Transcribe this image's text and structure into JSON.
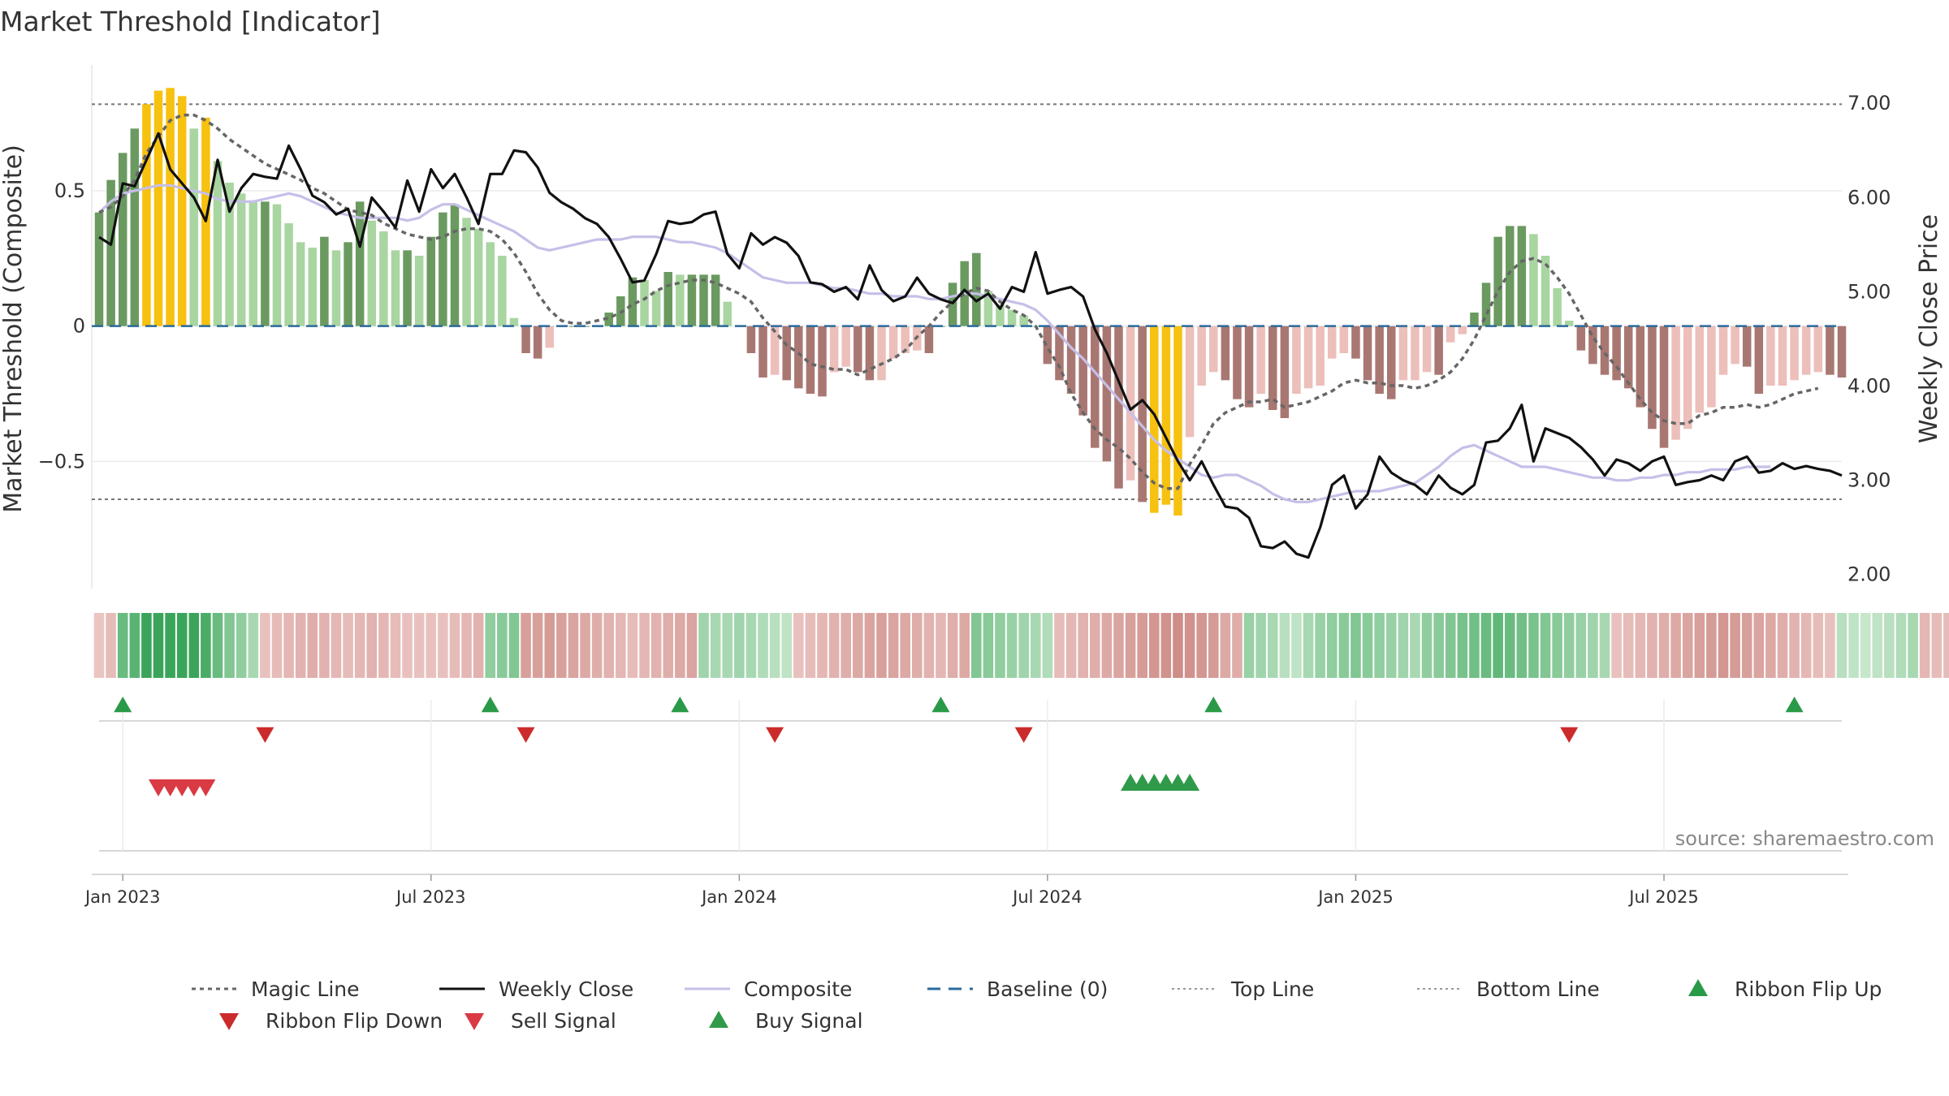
{
  "chart_data": {
    "type": "bar",
    "title": "Market Threshold [Indicator]",
    "ylabel": "Market Threshold (Composite)",
    "y2label": "Weekly Close Price",
    "source": "source: sharemaestro.com",
    "ylim": [
      -0.97,
      0.98
    ],
    "y2lim": [
      1.85,
      7.45
    ],
    "yticks": [
      {
        "v": 0.5,
        "label": "0.5"
      },
      {
        "v": 0,
        "label": "0"
      },
      {
        "v": -0.5,
        "label": "−0.5"
      }
    ],
    "y2ticks": [
      {
        "v": 7,
        "label": "7.00"
      },
      {
        "v": 6,
        "label": "6.00"
      },
      {
        "v": 5,
        "label": "5.00"
      },
      {
        "v": 4,
        "label": "4.00"
      },
      {
        "v": 3,
        "label": "3.00"
      },
      {
        "v": 2,
        "label": "2.00"
      }
    ],
    "xticks": [
      {
        "i": 2,
        "label": "Jan 2023"
      },
      {
        "i": 28,
        "label": "Jul 2023"
      },
      {
        "i": 54,
        "label": "Jan 2024"
      },
      {
        "i": 80,
        "label": "Jul 2024"
      },
      {
        "i": 106,
        "label": "Jan 2025"
      },
      {
        "i": 132,
        "label": "Jul 2025"
      }
    ],
    "top_line": 0.82,
    "bottom_line": -0.64,
    "baseline": 0,
    "composite_bars": [
      0.42,
      0.54,
      0.64,
      0.73,
      0.82,
      0.87,
      0.88,
      0.85,
      0.73,
      0.77,
      0.61,
      0.53,
      0.49,
      0.46,
      0.46,
      0.45,
      0.38,
      0.31,
      0.29,
      0.33,
      0.28,
      0.31,
      0.46,
      0.39,
      0.35,
      0.28,
      0.28,
      0.26,
      0.33,
      0.42,
      0.45,
      0.4,
      0.36,
      0.31,
      0.26,
      0.03,
      -0.1,
      -0.12,
      -0.08,
      0.0,
      0.0,
      0.0,
      0.0,
      0.05,
      0.11,
      0.18,
      0.17,
      0.13,
      0.2,
      0.19,
      0.19,
      0.19,
      0.19,
      0.09,
      0.0,
      -0.1,
      -0.19,
      -0.18,
      -0.2,
      -0.23,
      -0.25,
      -0.26,
      -0.17,
      -0.15,
      -0.17,
      -0.2,
      -0.2,
      -0.12,
      -0.1,
      -0.09,
      -0.1,
      0.0,
      0.16,
      0.24,
      0.27,
      0.13,
      0.08,
      0.06,
      0.04,
      0.0,
      -0.14,
      -0.2,
      -0.25,
      -0.33,
      -0.45,
      -0.5,
      -0.6,
      -0.57,
      -0.65,
      -0.69,
      -0.66,
      -0.7,
      -0.41,
      -0.22,
      -0.17,
      -0.2,
      -0.27,
      -0.3,
      -0.25,
      -0.31,
      -0.34,
      -0.25,
      -0.23,
      -0.22,
      -0.12,
      -0.1,
      -0.12,
      -0.2,
      -0.25,
      -0.27,
      -0.2,
      -0.2,
      -0.17,
      -0.18,
      -0.06,
      -0.03,
      0.05,
      0.16,
      0.33,
      0.37,
      0.37,
      0.34,
      0.26,
      0.14,
      0.02,
      -0.09,
      -0.14,
      -0.18,
      -0.2,
      -0.23,
      -0.3,
      -0.38,
      -0.45,
      -0.42,
      -0.38,
      -0.32,
      -0.3,
      -0.18,
      -0.14,
      -0.15,
      -0.25,
      -0.22,
      -0.22,
      -0.2,
      -0.18,
      -0.17,
      -0.18,
      -0.19
    ],
    "series": [
      {
        "name": "Magic Line",
        "axis": "left",
        "values": [
          0.42,
          0.44,
          0.48,
          0.54,
          0.64,
          0.7,
          0.76,
          0.78,
          0.78,
          0.76,
          0.73,
          0.69,
          0.66,
          0.63,
          0.6,
          0.58,
          0.56,
          0.54,
          0.51,
          0.49,
          0.46,
          0.43,
          0.42,
          0.41,
          0.38,
          0.36,
          0.34,
          0.33,
          0.32,
          0.33,
          0.35,
          0.36,
          0.36,
          0.35,
          0.32,
          0.27,
          0.2,
          0.12,
          0.06,
          0.02,
          0.01,
          0.01,
          0.02,
          0.03,
          0.05,
          0.08,
          0.1,
          0.13,
          0.15,
          0.16,
          0.17,
          0.17,
          0.16,
          0.14,
          0.12,
          0.09,
          0.03,
          -0.02,
          -0.07,
          -0.1,
          -0.14,
          -0.15,
          -0.16,
          -0.16,
          -0.18,
          -0.16,
          -0.14,
          -0.12,
          -0.09,
          -0.04,
          0.0,
          0.05,
          0.09,
          0.12,
          0.14,
          0.13,
          0.09,
          0.06,
          0.04,
          0.0,
          -0.08,
          -0.15,
          -0.25,
          -0.32,
          -0.38,
          -0.42,
          -0.45,
          -0.49,
          -0.54,
          -0.58,
          -0.6,
          -0.6,
          -0.51,
          -0.44,
          -0.36,
          -0.32,
          -0.3,
          -0.28,
          -0.28,
          -0.27,
          -0.3,
          -0.29,
          -0.28,
          -0.26,
          -0.24,
          -0.21,
          -0.2,
          -0.21,
          -0.21,
          -0.22,
          -0.22,
          -0.23,
          -0.22,
          -0.2,
          -0.17,
          -0.12,
          -0.05,
          0.04,
          0.13,
          0.2,
          0.24,
          0.25,
          0.23,
          0.18,
          0.12,
          0.04,
          -0.04,
          -0.1,
          -0.15,
          -0.21,
          -0.27,
          -0.32,
          -0.35,
          -0.36,
          -0.36,
          -0.33,
          -0.32,
          -0.3,
          -0.3,
          -0.29,
          -0.3,
          -0.29,
          -0.27,
          -0.25,
          -0.24,
          -0.23
        ]
      },
      {
        "name": "Weekly Close",
        "axis": "right",
        "values": [
          5.58,
          5.5,
          6.15,
          6.12,
          6.4,
          6.68,
          6.3,
          6.15,
          6.0,
          5.75,
          6.4,
          5.85,
          6.1,
          6.25,
          6.22,
          6.2,
          6.55,
          6.3,
          6.02,
          5.95,
          5.82,
          5.88,
          5.48,
          6.0,
          5.85,
          5.68,
          6.18,
          5.85,
          6.3,
          6.1,
          6.25,
          6.0,
          5.72,
          6.25,
          6.25,
          6.5,
          6.48,
          6.32,
          6.05,
          5.95,
          5.88,
          5.78,
          5.72,
          5.58,
          5.35,
          5.1,
          5.12,
          5.4,
          5.75,
          5.72,
          5.74,
          5.82,
          5.85,
          5.4,
          5.25,
          5.62,
          5.5,
          5.58,
          5.52,
          5.38,
          5.1,
          5.08,
          5.0,
          5.05,
          4.92,
          5.28,
          5.02,
          4.9,
          4.95,
          5.15,
          4.98,
          4.92,
          4.88,
          5.02,
          4.9,
          4.98,
          4.82,
          5.05,
          5.0,
          5.42,
          4.98,
          5.02,
          5.05,
          4.95,
          4.6,
          4.35,
          4.05,
          3.75,
          3.85,
          3.7,
          3.45,
          3.2,
          3.0,
          3.2,
          2.95,
          2.72,
          2.7,
          2.6,
          2.3,
          2.28,
          2.35,
          2.22,
          2.18,
          2.5,
          2.95,
          3.05,
          2.7,
          2.85,
          3.25,
          3.08,
          3.0,
          2.95,
          2.85,
          3.05,
          2.92,
          2.85,
          2.95,
          3.4,
          3.42,
          3.55,
          3.8,
          3.2,
          3.55,
          3.5,
          3.45,
          3.35,
          3.22,
          3.05,
          3.22,
          3.18,
          3.1,
          3.2,
          3.25,
          2.95,
          2.98,
          3.0,
          3.05,
          3.0,
          3.2,
          3.25,
          3.08,
          3.1,
          3.18,
          3.12,
          3.15,
          3.12,
          3.1,
          3.05
        ]
      },
      {
        "name": "Composite",
        "axis": "left",
        "values": [
          0.42,
          0.46,
          0.49,
          0.5,
          0.51,
          0.52,
          0.52,
          0.51,
          0.5,
          0.49,
          0.47,
          0.46,
          0.46,
          0.46,
          0.47,
          0.48,
          0.49,
          0.48,
          0.46,
          0.44,
          0.42,
          0.41,
          0.4,
          0.4,
          0.4,
          0.4,
          0.39,
          0.4,
          0.43,
          0.45,
          0.45,
          0.43,
          0.41,
          0.39,
          0.37,
          0.35,
          0.32,
          0.29,
          0.28,
          0.29,
          0.3,
          0.31,
          0.32,
          0.32,
          0.32,
          0.33,
          0.33,
          0.33,
          0.32,
          0.31,
          0.31,
          0.3,
          0.29,
          0.27,
          0.24,
          0.21,
          0.18,
          0.17,
          0.16,
          0.16,
          0.16,
          0.15,
          0.14,
          0.14,
          0.13,
          0.12,
          0.12,
          0.11,
          0.11,
          0.11,
          0.1,
          0.1,
          0.11,
          0.12,
          0.12,
          0.11,
          0.1,
          0.09,
          0.08,
          0.06,
          0.02,
          -0.03,
          -0.08,
          -0.12,
          -0.17,
          -0.22,
          -0.27,
          -0.32,
          -0.37,
          -0.42,
          -0.46,
          -0.49,
          -0.52,
          -0.55,
          -0.56,
          -0.55,
          -0.55,
          -0.57,
          -0.59,
          -0.62,
          -0.64,
          -0.65,
          -0.65,
          -0.64,
          -0.63,
          -0.62,
          -0.61,
          -0.61,
          -0.61,
          -0.6,
          -0.59,
          -0.58,
          -0.55,
          -0.52,
          -0.48,
          -0.45,
          -0.44,
          -0.46,
          -0.48,
          -0.5,
          -0.52,
          -0.52,
          -0.52,
          -0.53,
          -0.54,
          -0.55,
          -0.56,
          -0.56,
          -0.57,
          -0.57,
          -0.56,
          -0.56,
          -0.55,
          -0.55,
          -0.54,
          -0.54,
          -0.53,
          -0.53,
          -0.53,
          -0.52,
          -0.52,
          -0.52
        ]
      }
    ],
    "ribbon": [
      0.2,
      0.3,
      0.7,
      0.8,
      1,
      1,
      1,
      1,
      1,
      0.9,
      0.7,
      0.55,
      0.45,
      0.3,
      0.25,
      0.3,
      0.35,
      0.4,
      0.45,
      0.4,
      0.35,
      0.3,
      0.35,
      0.4,
      0.35,
      0.3,
      0.25,
      0.25,
      0.25,
      0.25,
      0.3,
      0.35,
      0.4,
      0.45,
      0.5,
      0.55,
      0.6,
      0.6,
      0.65,
      0.6,
      0.55,
      0.5,
      0.45,
      0.4,
      0.35,
      0.3,
      0.35,
      0.4,
      0.45,
      0.5,
      0.55,
      0.35,
      0.3,
      0.3,
      0.35,
      0.3,
      0.25,
      0.2,
      0.15,
      0.25,
      0.3,
      0.35,
      0.4,
      0.45,
      0.5,
      0.55,
      0.6,
      0.55,
      0.5,
      0.45,
      0.4,
      0.35,
      0.45,
      0.5,
      0.55,
      0.5,
      0.45,
      0.4,
      0.35,
      0.3,
      0.25,
      0.3,
      0.35,
      0.4,
      0.45,
      0.5,
      0.55,
      0.6,
      0.65,
      0.7,
      0.75,
      0.8,
      0.75,
      0.7,
      0.65,
      0.5,
      0.45,
      0.4,
      0.35,
      0.3,
      0.2,
      0.15,
      0.3,
      0.4,
      0.45,
      0.5,
      0.55,
      0.5,
      0.45,
      0.4,
      0.35,
      0.3,
      0.45,
      0.5,
      0.55,
      0.6,
      0.65,
      0.7,
      0.75,
      0.7,
      0.65,
      0.6,
      0.55,
      0.5,
      0.45,
      0.4,
      0.35,
      0.3,
      0.25,
      0.3,
      0.35,
      0.4,
      0.45,
      0.5,
      0.55,
      0.6,
      0.65,
      0.7,
      0.65,
      0.6,
      0.55,
      0.5,
      0.45,
      0.4,
      0.35,
      0.3,
      0.25,
      0.2,
      0.15,
      0.1,
      0.15,
      0.2,
      0.25,
      0.3,
      0.35,
      0.3,
      0.3,
      0.3,
      0.3,
      0.3
    ],
    "ribbon_sign": [
      -1,
      -1,
      1,
      1,
      1,
      1,
      1,
      1,
      1,
      1,
      1,
      1,
      1,
      1,
      -1,
      -1,
      -1,
      -1,
      -1,
      -1,
      -1,
      -1,
      -1,
      -1,
      -1,
      -1,
      -1,
      -1,
      -1,
      -1,
      -1,
      -1,
      -1,
      1,
      1,
      1,
      -1,
      -1,
      -1,
      -1,
      -1,
      -1,
      -1,
      -1,
      -1,
      -1,
      -1,
      -1,
      -1,
      -1,
      -1,
      1,
      1,
      1,
      1,
      1,
      1,
      1,
      1,
      -1,
      -1,
      -1,
      -1,
      -1,
      -1,
      -1,
      -1,
      -1,
      -1,
      -1,
      -1,
      -1,
      -1,
      -1,
      1,
      1,
      1,
      1,
      1,
      1,
      1,
      -1,
      -1,
      -1,
      -1,
      -1,
      -1,
      -1,
      -1,
      -1,
      -1,
      -1,
      -1,
      -1,
      -1,
      -1,
      -1,
      1,
      1,
      1,
      1,
      1,
      1,
      1,
      1,
      1,
      1,
      1,
      1,
      1,
      1,
      1,
      1,
      1,
      1,
      1,
      1,
      1,
      1,
      1,
      1,
      1,
      1,
      1,
      1,
      1,
      1,
      1,
      -1,
      -1,
      -1,
      -1,
      -1,
      -1,
      -1,
      -1,
      -1,
      -1,
      -1,
      -1,
      -1,
      -1,
      -1,
      -1,
      -1,
      -1,
      -1,
      1,
      1,
      1,
      1,
      1,
      1,
      1
    ],
    "ribbon_flip_up": [
      2,
      33,
      49,
      71,
      94,
      143
    ],
    "ribbon_flip_down": [
      14,
      36,
      57,
      78,
      124
    ],
    "sell_signals": [
      5,
      6,
      7,
      8,
      9
    ],
    "buy_signals": [
      87,
      88,
      89,
      90,
      91,
      92
    ],
    "colors": {
      "bar_pos_strong": "#6a9a60",
      "bar_pos_weak": "#a9d5a1",
      "bar_neg_strong": "#a97772",
      "bar_neg_weak": "#ecbfba",
      "bar_extreme": "#f7c10f",
      "magic_line": "#666666",
      "weekly_close": "#111111",
      "composite": "#c6bfe8",
      "baseline": "#2b6a9b",
      "threshold_line": "#777777",
      "flip_up": "#2a9a48",
      "flip_down": "#cc2b2b",
      "sell": "#d93a44",
      "buy": "#2f9a49"
    },
    "legend": [
      {
        "label": "Magic Line",
        "kind": "dotted",
        "color": "#666666"
      },
      {
        "label": "Weekly Close",
        "kind": "solid",
        "color": "#111111"
      },
      {
        "label": "Composite",
        "kind": "solid",
        "color": "#c6bfe8"
      },
      {
        "label": "Baseline (0)",
        "kind": "dashed",
        "color": "#2b6a9b"
      },
      {
        "label": "Top Line",
        "kind": "fine-dotted",
        "color": "#999999"
      },
      {
        "label": "Bottom Line",
        "kind": "fine-dotted",
        "color": "#999999"
      },
      {
        "label": "Ribbon Flip Up",
        "kind": "tri-up",
        "color": "#2a9a48"
      },
      {
        "label": "Ribbon Flip Down",
        "kind": "tri-down",
        "color": "#cc2b2b"
      },
      {
        "label": "Sell Signal",
        "kind": "tri-down",
        "color": "#d93a44"
      },
      {
        "label": "Buy Signal",
        "kind": "tri-up",
        "color": "#2f9a49"
      }
    ],
    "legend_placement": "bottom",
    "grid": true
  }
}
